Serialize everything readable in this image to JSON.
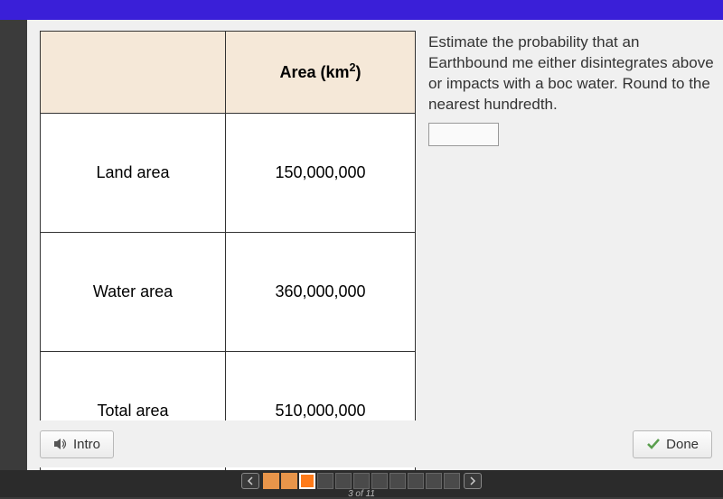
{
  "colors": {
    "top_bar": "#3a1fd8",
    "content_bg": "#f0f0f0",
    "table_header_bg": "#f5e8d8",
    "table_border": "#333333",
    "nav_bg": "#2b2b2b",
    "nav_completed": "#e8954a",
    "nav_current": "#ff7b1a"
  },
  "table": {
    "header_blank": "",
    "header_area": "Area (km²)",
    "rows": [
      {
        "label": "Land area",
        "value": "150,000,000"
      },
      {
        "label": "Water area",
        "value": "360,000,000"
      },
      {
        "label": "Total area",
        "value": "510,000,000"
      }
    ]
  },
  "question": {
    "text": "Estimate the probability that an Earthbound me either disintegrates above or impacts with a boc water. Round to the nearest hundredth.",
    "answer_value": ""
  },
  "buttons": {
    "intro": "Intro",
    "done": "Done"
  },
  "nav": {
    "progress_label": "3 of 11",
    "total": 11,
    "current": 3,
    "states": [
      "completed",
      "completed",
      "current",
      "empty",
      "empty",
      "empty",
      "empty",
      "empty",
      "empty",
      "empty",
      "empty"
    ]
  }
}
